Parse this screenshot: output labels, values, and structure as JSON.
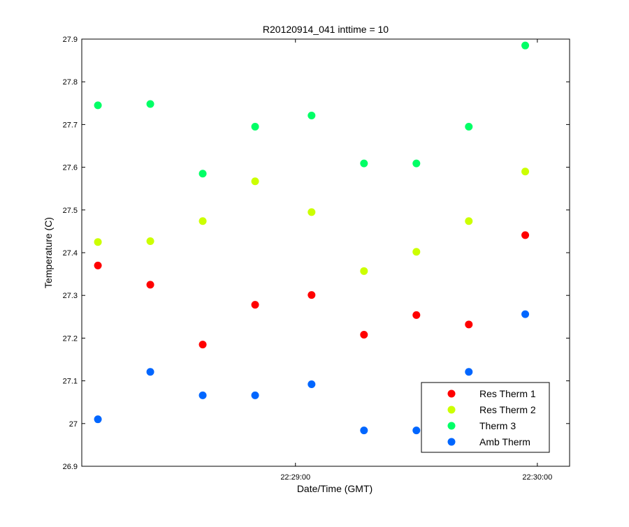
{
  "chart_data": {
    "type": "scatter",
    "title": "R20120914_041 inttime = 10",
    "xlabel": "Date/Time (GMT)",
    "ylabel": "Temperature (C)",
    "ylim": [
      26.9,
      27.9
    ],
    "xlim": [
      "22:28:07",
      "22:30:08"
    ],
    "x_ticks": [
      {
        "value": "22:29:00",
        "label": "22:29:00"
      },
      {
        "value": "22:30:00",
        "label": "22:30:00"
      }
    ],
    "y_ticks": [
      {
        "value": 26.9,
        "label": "26.9"
      },
      {
        "value": 27.0,
        "label": "27"
      },
      {
        "value": 27.1,
        "label": "27.1"
      },
      {
        "value": 27.2,
        "label": "27.2"
      },
      {
        "value": 27.3,
        "label": "27.3"
      },
      {
        "value": 27.4,
        "label": "27.4"
      },
      {
        "value": 27.5,
        "label": "27.5"
      },
      {
        "value": 27.6,
        "label": "27.6"
      },
      {
        "value": 27.7,
        "label": "27.7"
      },
      {
        "value": 27.8,
        "label": "27.8"
      },
      {
        "value": 27.9,
        "label": "27.9"
      }
    ],
    "grid": false,
    "legend_position": "bottom-right",
    "x": [
      "22:28:11",
      "22:28:24",
      "22:28:37",
      "22:28:50",
      "22:29:04",
      "22:29:17",
      "22:29:30",
      "22:29:43",
      "22:29:57"
    ],
    "series": [
      {
        "name": "Res Therm 1",
        "color": "#ff0000",
        "values": [
          27.37,
          27.325,
          27.185,
          27.278,
          27.301,
          27.208,
          27.254,
          27.232,
          27.441
        ]
      },
      {
        "name": "Res Therm 2",
        "color": "#ccff00",
        "values": [
          27.425,
          27.427,
          27.474,
          27.567,
          27.495,
          27.357,
          27.402,
          27.474,
          27.59
        ]
      },
      {
        "name": "Therm 3",
        "color": "#00ff66",
        "values": [
          27.745,
          27.748,
          27.585,
          27.695,
          27.721,
          27.609,
          27.609,
          27.695,
          27.885
        ]
      },
      {
        "name": "Amb Therm",
        "color": "#0066ff",
        "values": [
          27.01,
          27.121,
          27.066,
          27.066,
          27.092,
          26.984,
          26.984,
          27.121,
          27.256
        ]
      }
    ]
  }
}
